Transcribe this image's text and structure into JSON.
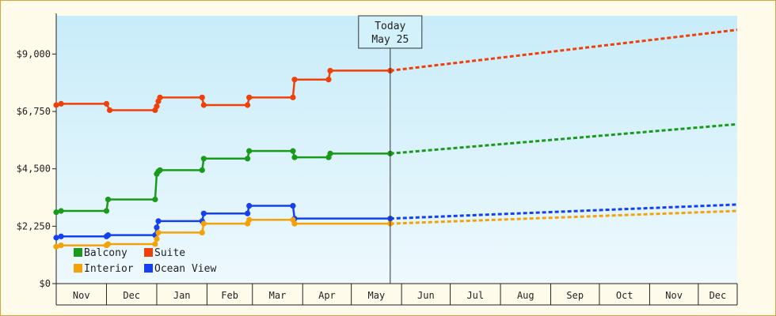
{
  "chart_data": {
    "type": "line",
    "title": "",
    "xlabel": "",
    "ylabel": "",
    "ylim": [
      0,
      10500
    ],
    "y_ticks": [
      {
        "value": 0,
        "label": "$0"
      },
      {
        "value": 2250,
        "label": "$2,250"
      },
      {
        "value": 4500,
        "label": "$4,500"
      },
      {
        "value": 6750,
        "label": "$6,750"
      },
      {
        "value": 9000,
        "label": "$9,000"
      }
    ],
    "x_range_days": [
      0,
      420
    ],
    "x_months": [
      {
        "label": "Nov",
        "start": 0,
        "end": 31
      },
      {
        "label": "Dec",
        "start": 31,
        "end": 62
      },
      {
        "label": "Jan",
        "start": 62,
        "end": 93
      },
      {
        "label": "Feb",
        "start": 93,
        "end": 121
      },
      {
        "label": "Mar",
        "start": 121,
        "end": 152
      },
      {
        "label": "Apr",
        "start": 152,
        "end": 182
      },
      {
        "label": "May",
        "start": 182,
        "end": 213
      },
      {
        "label": "Jun",
        "start": 213,
        "end": 243
      },
      {
        "label": "Jul",
        "start": 243,
        "end": 274
      },
      {
        "label": "Aug",
        "start": 274,
        "end": 305
      },
      {
        "label": "Sep",
        "start": 305,
        "end": 335
      },
      {
        "label": "Oct",
        "start": 335,
        "end": 366
      },
      {
        "label": "Nov",
        "start": 366,
        "end": 396
      },
      {
        "label": "Dec",
        "start": 396,
        "end": 420
      }
    ],
    "today": {
      "title": "Today",
      "date": "May 25",
      "day": 206
    },
    "background_gradient": [
      "#c8ecf9",
      "#eef9fe"
    ],
    "legend_position": "bottom-left",
    "series": [
      {
        "name": "Suite",
        "color": "#f0400a",
        "points": [
          [
            0,
            7000
          ],
          [
            3,
            7050
          ],
          [
            31,
            7050
          ],
          [
            33,
            6800
          ],
          [
            61,
            6800
          ],
          [
            62,
            6950
          ],
          [
            63,
            7150
          ],
          [
            64,
            7300
          ],
          [
            90,
            7300
          ],
          [
            91,
            7000
          ],
          [
            118,
            7000
          ],
          [
            119,
            7300
          ],
          [
            146,
            7300
          ],
          [
            147,
            8000
          ],
          [
            168,
            8000
          ],
          [
            169,
            8350
          ],
          [
            206,
            8350
          ]
        ],
        "forecast": [
          [
            206,
            8350
          ],
          [
            420,
            9950
          ]
        ]
      },
      {
        "name": "Balcony",
        "color": "#1a9a1a",
        "points": [
          [
            0,
            2800
          ],
          [
            3,
            2850
          ],
          [
            31,
            2850
          ],
          [
            32,
            3300
          ],
          [
            61,
            3300
          ],
          [
            62,
            4300
          ],
          [
            63,
            4400
          ],
          [
            64,
            4450
          ],
          [
            90,
            4450
          ],
          [
            91,
            4900
          ],
          [
            118,
            4900
          ],
          [
            119,
            5200
          ],
          [
            146,
            5200
          ],
          [
            147,
            4950
          ],
          [
            168,
            4950
          ],
          [
            169,
            5100
          ],
          [
            206,
            5100
          ]
        ],
        "forecast": [
          [
            206,
            5100
          ],
          [
            420,
            6250
          ]
        ]
      },
      {
        "name": "Ocean View",
        "color": "#1540f0",
        "points": [
          [
            0,
            1800
          ],
          [
            3,
            1850
          ],
          [
            31,
            1850
          ],
          [
            32,
            1900
          ],
          [
            61,
            1900
          ],
          [
            62,
            2200
          ],
          [
            63,
            2450
          ],
          [
            90,
            2450
          ],
          [
            91,
            2750
          ],
          [
            118,
            2750
          ],
          [
            119,
            3050
          ],
          [
            146,
            3050
          ],
          [
            147,
            2550
          ],
          [
            206,
            2550
          ]
        ],
        "forecast": [
          [
            206,
            2550
          ],
          [
            420,
            3100
          ]
        ]
      },
      {
        "name": "Interior",
        "color": "#f5a20a",
        "points": [
          [
            0,
            1450
          ],
          [
            3,
            1500
          ],
          [
            31,
            1500
          ],
          [
            32,
            1550
          ],
          [
            61,
            1550
          ],
          [
            62,
            1750
          ],
          [
            63,
            2000
          ],
          [
            90,
            2000
          ],
          [
            91,
            2350
          ],
          [
            118,
            2350
          ],
          [
            119,
            2500
          ],
          [
            146,
            2500
          ],
          [
            147,
            2350
          ],
          [
            206,
            2350
          ]
        ],
        "forecast": [
          [
            206,
            2350
          ],
          [
            420,
            2850
          ]
        ]
      }
    ],
    "legend": [
      {
        "name": "Balcony",
        "color": "#1a9a1a"
      },
      {
        "name": "Suite",
        "color": "#f0400a"
      },
      {
        "name": "Interior",
        "color": "#f5a20a"
      },
      {
        "name": "Ocean View",
        "color": "#1540f0"
      }
    ]
  }
}
